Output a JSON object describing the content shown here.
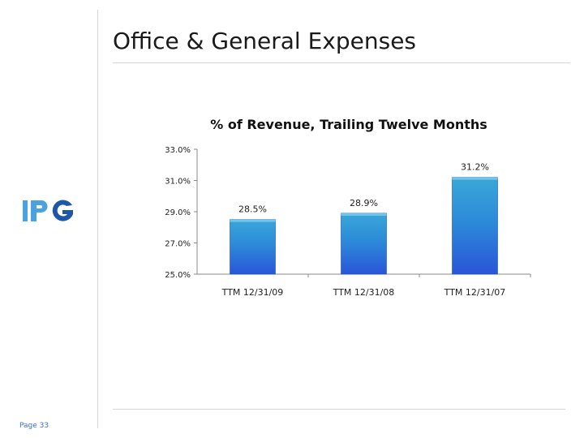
{
  "slide": {
    "title": "Office & General Expenses",
    "page_label": "Page 33",
    "logo_text": "IPG"
  },
  "colors": {
    "bar_top": "#3aa7d8",
    "bar_bottom": "#2a55d8",
    "logo_light": "#4aa3df",
    "logo_dark": "#1f57a8",
    "rule": "#d6d6d6"
  },
  "chart_data": {
    "type": "bar",
    "title": "% of Revenue, Trailing Twelve Months",
    "categories": [
      "TTM 12/31/09",
      "TTM 12/31/08",
      "TTM 12/31/07"
    ],
    "values": [
      28.5,
      28.9,
      31.2
    ],
    "data_labels": [
      "28.5%",
      "28.9%",
      "31.2%"
    ],
    "ylim": [
      25,
      33
    ],
    "yticks": [
      25,
      27,
      29,
      31,
      33
    ],
    "ytick_labels": [
      "25.0%",
      "27.0%",
      "29.0%",
      "31.0%",
      "33.0%"
    ],
    "xlabel": "",
    "ylabel": "",
    "grid": false,
    "legend": "none"
  }
}
